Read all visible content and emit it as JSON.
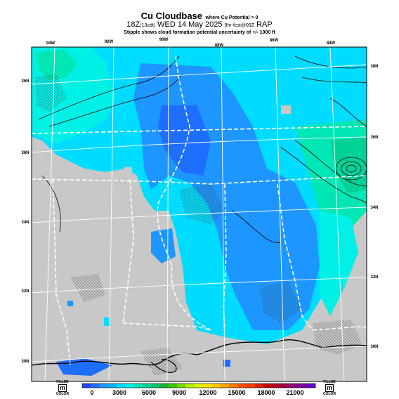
{
  "title": {
    "main": "Cu Cloudbase",
    "main_suffix": "where Cu Potential > 0",
    "line2_main": "18Z",
    "line2_local": "(13cdt)",
    "line2_date": " WED 14 May 2025 ",
    "line2_source": "9hr-fcst@09Z",
    "line2_model": " RAP",
    "line3": "Stipple shows cloud formation potential uncertainty of +/- 1000 ft"
  },
  "longitude_labels": [
    "94W",
    "92W",
    "90W",
    "88W",
    "86W",
    "84W"
  ],
  "latitude_labels_left": [
    "36N",
    "36N",
    "34N",
    "32N",
    "30N"
  ],
  "latitude_labels_right": [
    "38N",
    "36N",
    "34N",
    "32N",
    "30N"
  ],
  "colorbar": {
    "ticks": [
      "0",
      "3000",
      "6000",
      "9000",
      "12000",
      "15000",
      "18000",
      "21000"
    ],
    "colors": [
      "#1e46ff",
      "#1e6eff",
      "#1e96ff",
      "#00b4ff",
      "#00dcff",
      "#00f0e6",
      "#00e6b4",
      "#00d296",
      "#00c864",
      "#14b43c",
      "#3cc800",
      "#78dc00",
      "#b4f000",
      "#e6f000",
      "#ffe600",
      "#ffc800",
      "#ffa000",
      "#ff7800",
      "#ff5000",
      "#f03c00",
      "#dc1e00",
      "#c80000",
      "#b40028",
      "#a00050",
      "#8c0078",
      "#7800a0",
      "#6400c8"
    ],
    "left_label_top": "FILLED",
    "left_label_box": "m",
    "left_label_bottom": "COLOR",
    "right_label_top": "FILLED",
    "right_label_box": "m",
    "right_label_bottom": "COLOR"
  },
  "colors": {
    "no_data": "#c8c8c8",
    "blue": "#1e6eff",
    "mid_blue": "#1e96ff",
    "cyan": "#00dcff",
    "aqua": "#00f0e6",
    "teal": "#00e6b4",
    "green": "#00d296",
    "contour": "#000000",
    "boundary": "#ffffff"
  }
}
